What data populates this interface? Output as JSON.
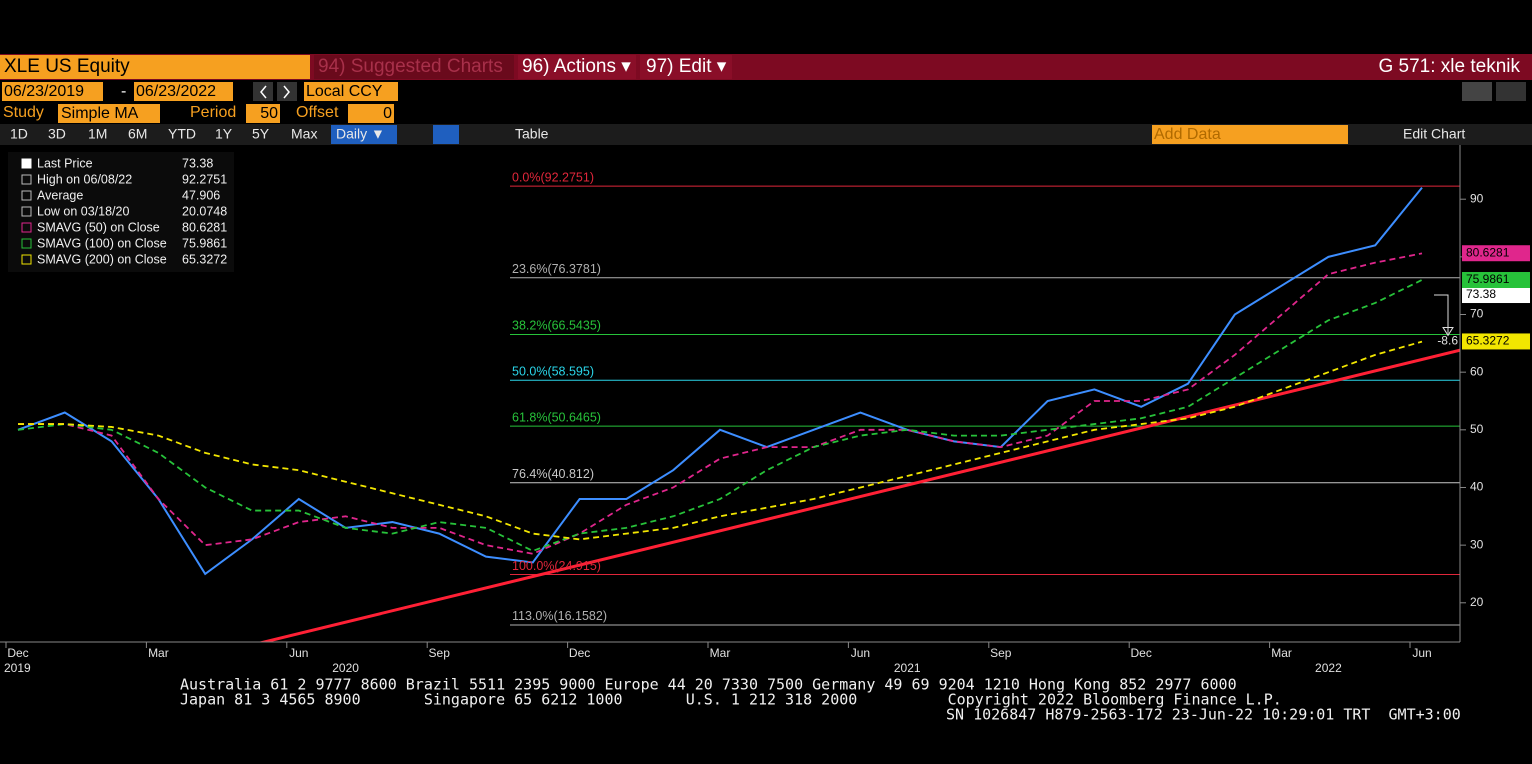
{
  "header": {
    "security": "XLE US Equity",
    "suggested": "94) Suggested Charts",
    "actions": "96) Actions ▾",
    "edit": "97) Edit ▾",
    "chart_name": "G 571: xle teknik"
  },
  "controls": {
    "start_date": "06/23/2019",
    "dash": "-",
    "end_date": "06/23/2022",
    "currency": "Local CCY",
    "study_label": "Study",
    "study": "Simple MA",
    "period_label": "Period",
    "period": 50,
    "offset_label": "Offset",
    "offset": 0,
    "ranges": [
      "1D",
      "3D",
      "1M",
      "6M",
      "YTD",
      "1Y",
      "5Y",
      "Max"
    ],
    "frequency": "Daily ▼",
    "table": "Table",
    "add_data": "Add Data",
    "edit_chart": "Edit Chart"
  },
  "chart_data": {
    "type": "line",
    "x": [
      "2019-12",
      "2020-01",
      "2020-02",
      "2020-03",
      "2020-04",
      "2020-05",
      "2020-06",
      "2020-07",
      "2020-08",
      "2020-09",
      "2020-10",
      "2020-11",
      "2020-12",
      "2021-01",
      "2021-02",
      "2021-03",
      "2021-04",
      "2021-05",
      "2021-06",
      "2021-07",
      "2021-08",
      "2021-09",
      "2021-10",
      "2021-11",
      "2021-12",
      "2022-01",
      "2022-02",
      "2022-03",
      "2022-04",
      "2022-05",
      "2022-06"
    ],
    "series": [
      {
        "name": "Last Price",
        "color": "#3d8eff",
        "last": 73.38,
        "values": [
          50,
          53,
          48,
          38,
          25,
          31,
          38,
          33,
          34,
          32,
          28,
          27,
          38,
          38,
          43,
          50,
          47,
          50,
          53,
          50,
          48,
          47,
          55,
          57,
          54,
          58,
          70,
          75,
          80,
          82,
          92
        ]
      },
      {
        "name": "SMAVG (50)  on Close",
        "color": "#e0268c",
        "last": 80.6281,
        "values": [
          51,
          51,
          49,
          38,
          30,
          31,
          34,
          35,
          33,
          33,
          30,
          28.5,
          32,
          37,
          40,
          45,
          47,
          47,
          50,
          50,
          48,
          47,
          49,
          55,
          55,
          57,
          63,
          70,
          77,
          79,
          80.6
        ]
      },
      {
        "name": "SMAVG (100)  on Close",
        "color": "#27c23a",
        "last": 75.9861,
        "values": [
          50,
          51,
          50,
          46,
          40,
          36,
          36,
          33,
          32,
          34,
          33,
          29,
          32,
          33,
          35,
          38,
          43,
          47,
          49,
          50,
          49,
          49,
          50,
          51,
          52,
          54,
          59,
          64,
          69,
          72,
          76
        ]
      },
      {
        "name": "SMAVG (200)  on Close",
        "color": "#f2e600",
        "last": 65.3272,
        "values": [
          51,
          51,
          50.5,
          49,
          46,
          44,
          43,
          41,
          39,
          37,
          35,
          32,
          31,
          32,
          33,
          35,
          36.5,
          38,
          40,
          42,
          44,
          46,
          48,
          50,
          51,
          52,
          54,
          57,
          60,
          63,
          65.3
        ]
      }
    ],
    "stats": [
      {
        "label": "High on 06/08/22",
        "value": 92.2751
      },
      {
        "label": "Average",
        "value": 47.906
      },
      {
        "label": "Low on 03/18/20",
        "value": 20.0748
      }
    ],
    "levels": [
      {
        "label": "0.0%(92.2751)",
        "value": 92.2751,
        "color": "#e0263a"
      },
      {
        "label": "23.6%(76.3781)",
        "value": 76.3781,
        "color": "#b0b0b0"
      },
      {
        "label": "38.2%(66.5435)",
        "value": 66.5435,
        "color": "#27c23a"
      },
      {
        "label": "50.0%(58.595)",
        "value": 58.595,
        "color": "#2ad4e8"
      },
      {
        "label": "61.8%(50.6465)",
        "value": 50.6465,
        "color": "#27c23a"
      },
      {
        "label": "76.4%(40.812)",
        "value": 40.812,
        "color": "#c8c8c8"
      },
      {
        "label": "100.0%(24.915)",
        "value": 24.915,
        "color": "#e0263a"
      },
      {
        "label": "113.0%(16.1582)",
        "value": 16.1582,
        "color": "#b0b0b0"
      }
    ],
    "trendline": {
      "color": "#ff2035",
      "points": [
        {
          "x": "2020-04",
          "y": 10.7
        },
        {
          "x": "2022-06",
          "y": 62.2
        }
      ]
    },
    "annotation": -8.6,
    "ylim": [
      13.2,
      99.4
    ],
    "yticks": [
      20,
      30,
      40,
      50,
      60,
      70,
      80,
      90
    ],
    "month_labels": [
      {
        "label": "Dec",
        "x": "2019-12"
      },
      {
        "label": "Mar",
        "x": "2020-03"
      },
      {
        "label": "Jun",
        "x": "2020-06"
      },
      {
        "label": "Sep",
        "x": "2020-09"
      },
      {
        "label": "Dec",
        "x": "2020-12"
      },
      {
        "label": "Mar",
        "x": "2021-03"
      },
      {
        "label": "Jun",
        "x": "2021-06"
      },
      {
        "label": "Sep",
        "x": "2021-09"
      },
      {
        "label": "Dec",
        "x": "2021-12"
      },
      {
        "label": "Mar",
        "x": "2022-03"
      },
      {
        "label": "Jun",
        "x": "2022-06"
      }
    ],
    "year_labels": [
      {
        "label": "2019",
        "x": "2019-12"
      },
      {
        "label": "2020",
        "x": "2020-07"
      },
      {
        "label": "2021",
        "x": "2021-07"
      },
      {
        "label": "2022",
        "x": "2022-04"
      }
    ]
  },
  "footer": {
    "lines": [
      "Australia 61 2 9777 8600 Brazil 5511 2395 9000 Europe 44 20 7330 7500 Germany 49 69 9204 1210 Hong Kong 852 2977 6000",
      "Japan 81 3 4565 8900       Singapore 65 6212 1000       U.S. 1 212 318 2000          Copyright 2022 Bloomberg Finance L.P.",
      "SN 1026847 H879-2563-172 23-Jun-22 10:29:01 TRT  GMT+3:00"
    ]
  }
}
